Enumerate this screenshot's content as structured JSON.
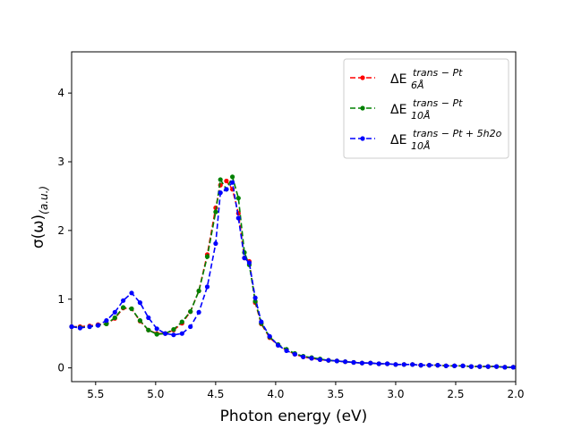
{
  "chart_data": {
    "type": "line",
    "title": "",
    "xlabel": "Photon energy (eV)",
    "ylabel": "σ(ω)",
    "ylabel_sub": "(a.u.)",
    "xlim": [
      5.7,
      2.0
    ],
    "ylim": [
      -0.2,
      4.6
    ],
    "x_inverted": true,
    "xticks": [
      5.5,
      5.0,
      4.5,
      4.0,
      3.5,
      3.0,
      2.5,
      2.0
    ],
    "xtick_labels": [
      "5.5",
      "5.0",
      "4.5",
      "4.0",
      "3.5",
      "3.0",
      "2.5",
      "2.0"
    ],
    "yticks": [
      0,
      1,
      2,
      3,
      4
    ],
    "ytick_labels": [
      "0",
      "1",
      "2",
      "3",
      "4"
    ],
    "grid": false,
    "legend_position": "top-right",
    "x": [
      5.7,
      5.63,
      5.55,
      5.48,
      5.41,
      5.34,
      5.27,
      5.2,
      5.13,
      5.06,
      4.99,
      4.92,
      4.85,
      4.78,
      4.71,
      4.64,
      4.57,
      4.5,
      4.46,
      4.41,
      4.36,
      4.31,
      4.26,
      4.22,
      4.17,
      4.12,
      4.05,
      3.98,
      3.91,
      3.84,
      3.77,
      3.7,
      3.63,
      3.56,
      3.49,
      3.42,
      3.35,
      3.28,
      3.21,
      3.14,
      3.07,
      3.0,
      2.93,
      2.86,
      2.79,
      2.72,
      2.65,
      2.58,
      2.51,
      2.44,
      2.37,
      2.3,
      2.23,
      2.16,
      2.09,
      2.02
    ],
    "series": [
      {
        "name": "ΔE_6Å^trans-Pt",
        "color": "#ff0000",
        "values": [
          0.6,
          0.6,
          0.61,
          0.63,
          0.64,
          0.72,
          0.87,
          0.86,
          0.68,
          0.55,
          0.5,
          0.5,
          0.55,
          0.65,
          0.82,
          1.12,
          1.65,
          2.33,
          2.66,
          2.72,
          2.6,
          2.25,
          1.6,
          1.55,
          0.95,
          0.64,
          0.44,
          0.33,
          0.26,
          0.2,
          0.16,
          0.14,
          0.12,
          0.11,
          0.1,
          0.09,
          0.08,
          0.07,
          0.07,
          0.06,
          0.06,
          0.05,
          0.05,
          0.05,
          0.04,
          0.04,
          0.04,
          0.03,
          0.03,
          0.03,
          0.02,
          0.02,
          0.02,
          0.02,
          0.01,
          0.01
        ]
      },
      {
        "name": "ΔE_10Å^trans-Pt",
        "color": "#008000",
        "values": [
          0.6,
          0.59,
          0.6,
          0.62,
          0.64,
          0.73,
          0.88,
          0.86,
          0.69,
          0.55,
          0.49,
          0.5,
          0.56,
          0.67,
          0.82,
          1.12,
          1.62,
          2.27,
          2.74,
          2.6,
          2.78,
          2.47,
          1.68,
          1.5,
          0.97,
          0.65,
          0.45,
          0.34,
          0.27,
          0.21,
          0.17,
          0.15,
          0.13,
          0.11,
          0.1,
          0.09,
          0.08,
          0.07,
          0.07,
          0.06,
          0.06,
          0.05,
          0.05,
          0.05,
          0.04,
          0.04,
          0.04,
          0.03,
          0.03,
          0.03,
          0.02,
          0.02,
          0.02,
          0.02,
          0.01,
          0.01
        ]
      },
      {
        "name": "ΔE_10Å^trans-Pt+5h2o",
        "color": "#0000ff",
        "values": [
          0.6,
          0.58,
          0.6,
          0.62,
          0.69,
          0.81,
          0.98,
          1.09,
          0.95,
          0.73,
          0.57,
          0.5,
          0.48,
          0.5,
          0.6,
          0.81,
          1.18,
          1.81,
          2.55,
          2.6,
          2.7,
          2.18,
          1.6,
          1.53,
          1.02,
          0.67,
          0.46,
          0.33,
          0.25,
          0.2,
          0.16,
          0.14,
          0.12,
          0.11,
          0.1,
          0.09,
          0.08,
          0.07,
          0.07,
          0.06,
          0.06,
          0.05,
          0.05,
          0.05,
          0.04,
          0.04,
          0.04,
          0.03,
          0.03,
          0.03,
          0.02,
          0.02,
          0.02,
          0.02,
          0.01,
          0.01
        ]
      }
    ],
    "legend": [
      {
        "base": "ΔE",
        "sub": "6Å",
        "sup": "trans − Pt"
      },
      {
        "base": "ΔE",
        "sub": "10Å",
        "sup": "trans − Pt"
      },
      {
        "base": "ΔE",
        "sub": "10Å",
        "sup": "trans − Pt + 5h2o"
      }
    ]
  }
}
